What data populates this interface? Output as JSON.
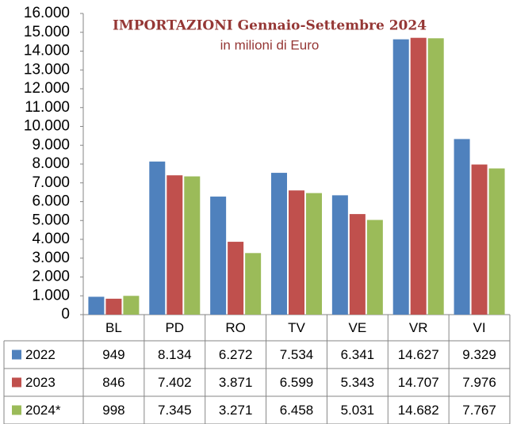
{
  "chart_data": {
    "type": "bar",
    "title": "IMPORTAZIONI Gennaio-Settembre 2024",
    "subtitle": "in milioni di Euro",
    "categories": [
      "BL",
      "PD",
      "RO",
      "TV",
      "VE",
      "VR",
      "VI"
    ],
    "series": [
      {
        "name": "2022",
        "color": "#4f81bd",
        "values": [
          949,
          8134,
          6272,
          7534,
          6341,
          14627,
          9329
        ],
        "value_labels": [
          "949",
          "8.134",
          "6.272",
          "7.534",
          "6.341",
          "14.627",
          "9.329"
        ]
      },
      {
        "name": "2023",
        "color": "#c0504d",
        "values": [
          846,
          7402,
          3871,
          6599,
          5343,
          14707,
          7976
        ],
        "value_labels": [
          "846",
          "7.402",
          "3.871",
          "6.599",
          "5.343",
          "14.707",
          "7.976"
        ]
      },
      {
        "name": "2024*",
        "color": "#9bbb59",
        "values": [
          998,
          7345,
          3271,
          6458,
          5031,
          14682,
          7767
        ],
        "value_labels": [
          "998",
          "7.345",
          "3.271",
          "6.458",
          "5.031",
          "14.682",
          "7.767"
        ]
      }
    ],
    "ylim": [
      0,
      16000
    ],
    "yticks": [
      0,
      {
        "value": 1000,
        "label": "1.000"
      },
      {
        "value": 2000,
        "label": "2.000"
      },
      {
        "value": 3000,
        "label": "3.000"
      },
      {
        "value": 4000,
        "label": "4.000"
      },
      {
        "value": 5000,
        "label": "5.000"
      },
      {
        "value": 6000,
        "label": "6.000"
      },
      {
        "value": 7000,
        "label": "7.000"
      },
      {
        "value": 8000,
        "label": "8.000"
      },
      {
        "value": 9000,
        "label": "9.000"
      },
      {
        "value": 10000,
        "label": "10.000"
      },
      {
        "value": 11000,
        "label": "11.000"
      },
      {
        "value": 12000,
        "label": "12.000"
      },
      {
        "value": 13000,
        "label": "13.000"
      },
      {
        "value": 14000,
        "label": "14.000"
      },
      {
        "value": 15000,
        "label": "15.000"
      },
      {
        "value": 16000,
        "label": "16.000"
      }
    ],
    "grid": false
  }
}
